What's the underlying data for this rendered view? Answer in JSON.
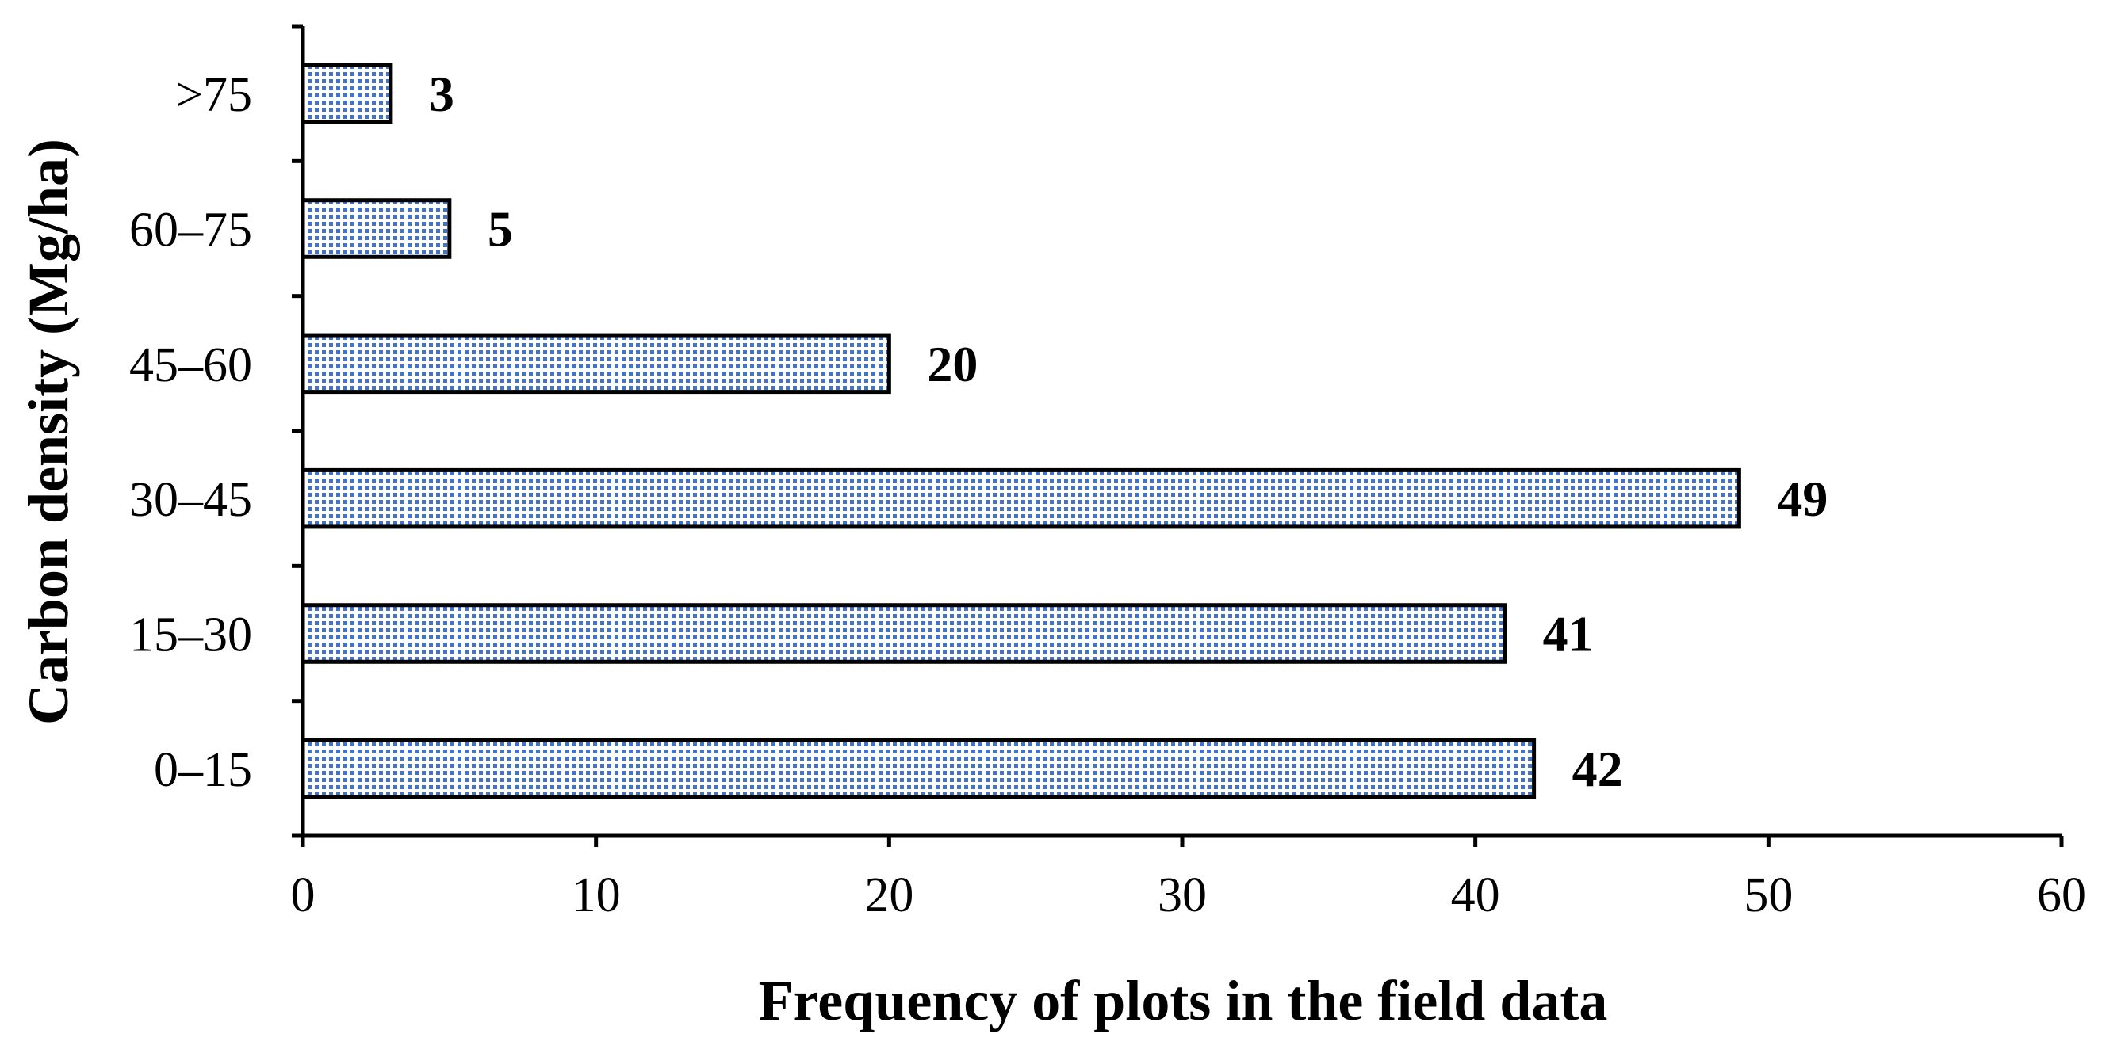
{
  "chart_data": {
    "type": "bar",
    "orientation": "horizontal",
    "categories": [
      "0–15",
      "15–30",
      "30–45",
      "45–60",
      "60–75",
      ">75"
    ],
    "values": [
      42,
      41,
      49,
      20,
      5,
      3
    ],
    "data_labels": [
      "42",
      "41",
      "49",
      "20",
      "5",
      "3"
    ],
    "xlabel": "Frequency of plots in the field data",
    "ylabel": "Carbon density (Mg/ha)",
    "xlim": [
      0,
      60
    ],
    "xticks": [
      0,
      10,
      20,
      30,
      40,
      50,
      60
    ],
    "xtick_labels": [
      "0",
      "10",
      "20",
      "30",
      "40",
      "50",
      "60"
    ],
    "grid": false,
    "legend": "none",
    "bar_fill": "dotted pattern",
    "bar_fill_color": "#4472C4",
    "bar_outline_color": "#000000"
  }
}
